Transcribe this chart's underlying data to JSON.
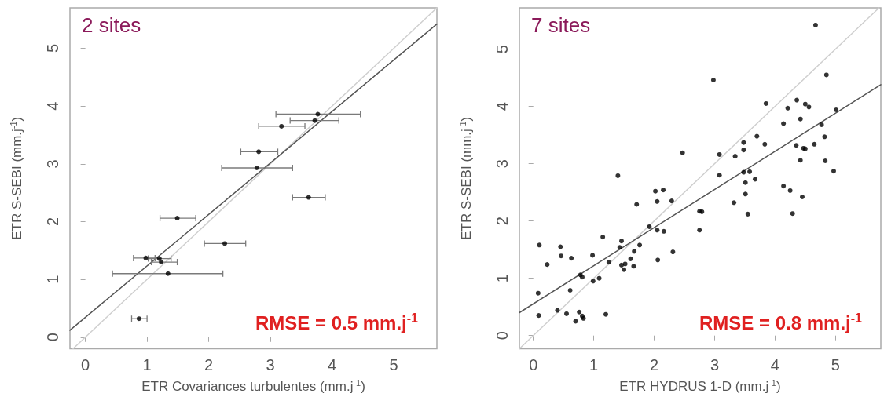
{
  "chart_data": [
    {
      "type": "scatter",
      "title": "2 sites",
      "xlabel": "ETR Covariances turbulentes (mm.j$^{-1}$)",
      "ylabel": "ETR S-SEBI (mm.j$^{-1}$)",
      "annotations": [
        "RMSE = 0.5 mm.j$^{-1}$"
      ],
      "marker": "circle",
      "xlim": [
        -0.25,
        5.7
      ],
      "ylim": [
        -0.2,
        5.7
      ],
      "xticks": [
        0,
        1,
        2,
        3,
        4,
        5
      ],
      "yticks": [
        0,
        1,
        2,
        3,
        4,
        5
      ],
      "series": [
        {
          "type": "line",
          "marker": "none",
          "color": "#cfcfcf",
          "line_style": "solid",
          "x": [
            -0.2,
            5.7
          ],
          "values": [
            -0.2,
            5.7
          ]
        },
        {
          "type": "line",
          "marker": "none",
          "color": "#555555",
          "line_style": "solid",
          "x": [
            -0.25,
            5.7
          ],
          "values": [
            0.12,
            5.42
          ]
        },
        {
          "color": "#000000",
          "x": [
            3.77,
            3.72,
            3.18,
            2.81,
            2.78,
            3.62,
            1.49,
            2.26,
            0.98,
            1.2,
            1.23,
            1.34,
            0.87
          ],
          "values": [
            3.86,
            3.75,
            3.65,
            3.21,
            2.93,
            2.42,
            2.06,
            1.62,
            1.37,
            1.36,
            1.3,
            1.1,
            0.32
          ],
          "xerrors": [
            [
              3.09,
              4.46
            ],
            [
              3.32,
              4.11
            ],
            [
              2.81,
              3.56
            ],
            [
              2.52,
              3.12
            ],
            [
              2.21,
              3.36
            ],
            [
              3.36,
              3.89
            ],
            [
              1.21,
              1.79
            ],
            [
              1.93,
              2.6
            ],
            [
              0.78,
              1.13
            ],
            [
              1.02,
              1.39
            ],
            [
              1.07,
              1.49
            ],
            [
              0.44,
              2.23
            ],
            [
              0.75,
              1.0
            ]
          ]
        }
      ]
    },
    {
      "type": "scatter",
      "title": "7 sites",
      "xlabel": "ETR HYDRUS 1-D (mm.j$^{-1}$)",
      "ylabel": "ETR S-SEBI (mm.j$^{-1}$)",
      "annotations": [
        "RMSE = 0.8 mm.j$^{-1}$"
      ],
      "marker": "circle",
      "xlim": [
        -0.23,
        5.75
      ],
      "ylim": [
        -0.23,
        5.72
      ],
      "xticks": [
        0,
        1,
        2,
        3,
        4,
        5
      ],
      "yticks": [
        0,
        1,
        2,
        3,
        4,
        5
      ],
      "series": [
        {
          "type": "line",
          "marker": "none",
          "color": "#cfcfcf",
          "line_style": "solid",
          "x": [
            -0.23,
            5.72
          ],
          "values": [
            -0.23,
            5.72
          ]
        },
        {
          "type": "line",
          "marker": "none",
          "color": "#555555",
          "line_style": "solid",
          "x": [
            -0.23,
            5.75
          ],
          "values": [
            0.4,
            4.38
          ]
        },
        {
          "color": "#000000",
          "x": [
            0.1,
            0.23,
            0.08,
            0.09,
            0.45,
            0.46,
            0.63,
            0.4,
            0.55,
            0.61,
            0.7,
            0.76,
            0.81,
            0.83,
            0.78,
            0.81,
            0.98,
            0.99,
            1.09,
            1.15,
            1.2,
            1.25,
            1.4,
            1.43,
            1.46,
            1.46,
            1.5,
            1.52,
            1.61,
            1.66,
            1.67,
            1.71,
            1.76,
            1.92,
            2.02,
            2.05,
            2.15,
            2.05,
            2.16,
            2.06,
            2.29,
            2.31,
            2.47,
            4.67,
            2.98,
            4.85,
            3.85,
            4.36,
            4.21,
            4.5,
            4.56,
            5.01,
            4.14,
            4.42,
            4.77,
            4.82,
            4.65,
            4.35,
            4.47,
            4.5,
            4.42,
            4.83,
            4.97,
            3.7,
            3.83,
            3.48,
            3.48,
            3.34,
            3.08,
            3.08,
            3.48,
            3.58,
            3.67,
            3.51,
            3.51,
            3.32,
            3.55,
            4.14,
            4.25,
            4.45,
            4.29,
            2.75,
            2.79,
            2.75
          ],
          "values": [
            1.58,
            1.24,
            0.74,
            0.35,
            1.55,
            1.39,
            1.35,
            0.44,
            0.38,
            0.79,
            0.25,
            0.41,
            0.34,
            0.3,
            1.06,
            1.02,
            1.4,
            0.95,
            1.0,
            1.72,
            0.37,
            1.28,
            2.79,
            1.54,
            1.65,
            1.23,
            1.15,
            1.25,
            1.34,
            1.21,
            1.47,
            2.29,
            1.58,
            1.9,
            2.52,
            2.34,
            2.54,
            1.84,
            1.82,
            1.32,
            2.35,
            1.46,
            3.19,
            5.42,
            4.46,
            4.55,
            4.05,
            4.11,
            3.97,
            4.04,
            3.99,
            3.94,
            3.7,
            3.78,
            3.68,
            3.47,
            3.34,
            3.32,
            3.27,
            3.26,
            3.06,
            3.05,
            2.87,
            3.48,
            3.34,
            3.37,
            3.24,
            3.13,
            3.16,
            2.8,
            2.85,
            2.86,
            2.73,
            2.67,
            2.47,
            2.32,
            2.12,
            2.61,
            2.53,
            2.42,
            2.13,
            2.17,
            2.16,
            1.84
          ]
        }
      ]
    }
  ]
}
